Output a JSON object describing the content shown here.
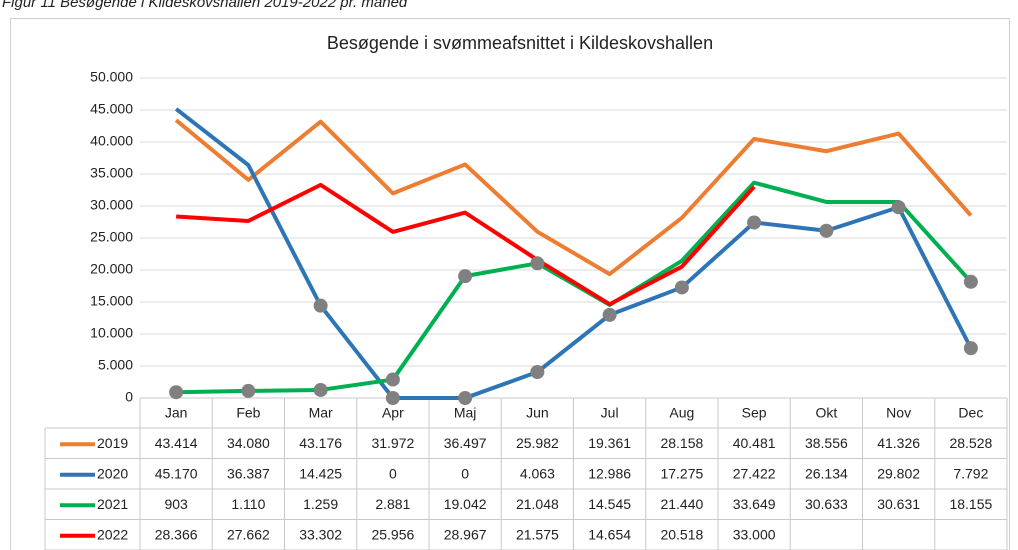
{
  "caption": "Figur 11 Besøgende i Kildeskovshallen 2019-2022 pr. måned",
  "chart_data": {
    "type": "line",
    "title": "Besøgende i svømmeafsnittet i Kildeskovshallen",
    "categories": [
      "Jan",
      "Feb",
      "Mar",
      "Apr",
      "Maj",
      "Jun",
      "Jul",
      "Aug",
      "Sep",
      "Okt",
      "Nov",
      "Dec"
    ],
    "ylim": [
      0,
      50000
    ],
    "yticks": [
      0,
      {
        "value": 5000,
        "label": "5.000"
      },
      {
        "value": 10000,
        "label": "10.000"
      },
      {
        "value": 15000,
        "label": "15.000"
      },
      {
        "value": 20000,
        "label": "20.000"
      },
      {
        "value": 25000,
        "label": "25.000"
      },
      {
        "value": 30000,
        "label": "30.000"
      },
      {
        "value": 35000,
        "label": "35.000"
      },
      {
        "value": 40000,
        "label": "40.000"
      },
      {
        "value": 45000,
        "label": "45.000"
      },
      {
        "value": 50000,
        "label": "50.000"
      }
    ],
    "grid": true,
    "data_table": true,
    "marker_color": "#808080",
    "series": [
      {
        "name": "2019",
        "color": "#ED7D31",
        "values": [
          43414,
          34080,
          43176,
          31972,
          36497,
          25982,
          19361,
          28158,
          40481,
          38556,
          41326,
          28528
        ],
        "value_labels": [
          "43.414",
          "34.080",
          "43.176",
          "31.972",
          "36.497",
          "25.982",
          "19.361",
          "28.158",
          "40.481",
          "38.556",
          "41.326",
          "28.528"
        ],
        "markers": []
      },
      {
        "name": "2020",
        "color": "#2E75B6",
        "values": [
          45170,
          36387,
          14425,
          0,
          0,
          4063,
          12986,
          17275,
          27422,
          26134,
          29802,
          7792
        ],
        "value_labels": [
          "45.170",
          "36.387",
          "14.425",
          "0",
          "0",
          "4.063",
          "12.986",
          "17.275",
          "27.422",
          "26.134",
          "29.802",
          "7.792"
        ],
        "markers": [
          2,
          3,
          4,
          5,
          6,
          7,
          8,
          9,
          10,
          11
        ]
      },
      {
        "name": "2021",
        "color": "#00B050",
        "values": [
          903,
          1110,
          1259,
          2881,
          19042,
          21048,
          14545,
          21440,
          33649,
          30633,
          30631,
          18155
        ],
        "value_labels": [
          "903",
          "1.110",
          "1.259",
          "2.881",
          "19.042",
          "21.048",
          "14.545",
          "21.440",
          "33.649",
          "30.633",
          "30.631",
          "18.155"
        ],
        "markers": [
          0,
          1,
          2,
          3,
          4,
          5,
          11
        ]
      },
      {
        "name": "2022",
        "color": "#FF0000",
        "values": [
          28366,
          27662,
          33302,
          25956,
          28967,
          21575,
          14654,
          20518,
          33000,
          null,
          null,
          null
        ],
        "value_labels": [
          "28.366",
          "27.662",
          "33.302",
          "25.956",
          "28.967",
          "21.575",
          "14.654",
          "20.518",
          "33.000",
          null,
          null,
          null
        ],
        "markers": []
      }
    ]
  }
}
